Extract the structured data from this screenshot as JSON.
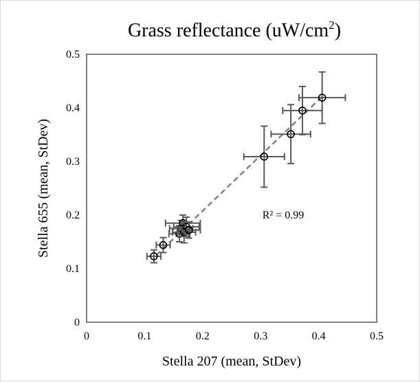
{
  "chart_data": {
    "type": "scatter",
    "title": "Grass reflectance  (uW/cm",
    "title_superscript": "2",
    "title_close": ")",
    "xlabel": "Stella 207 (mean, StDev)",
    "ylabel": "Stella 655 (mean, StDev)",
    "xlim": [
      0,
      0.5
    ],
    "ylim": [
      0,
      0.5
    ],
    "xticks": [
      "0",
      "0.1",
      "0.2",
      "0.3",
      "0.4",
      "0.5"
    ],
    "yticks": [
      "0",
      "0.1",
      "0.2",
      "0.3",
      "0.4",
      "0.5"
    ],
    "grid": false,
    "annotation": "R² = 0.99",
    "trendline": {
      "type": "linear",
      "x": [
        0.12,
        0.405
      ],
      "y": [
        0.125,
        0.42
      ],
      "color": "#808080",
      "style": "dashed"
    },
    "marker_color": "#000000",
    "errorbar_color": "#595959",
    "points": [
      {
        "x": 0.116,
        "y": 0.123,
        "xerr": 0.012,
        "yerr": 0.012
      },
      {
        "x": 0.132,
        "y": 0.144,
        "xerr": 0.012,
        "yerr": 0.014
      },
      {
        "x": 0.16,
        "y": 0.165,
        "xerr": 0.018,
        "yerr": 0.015
      },
      {
        "x": 0.163,
        "y": 0.175,
        "xerr": 0.02,
        "yerr": 0.015
      },
      {
        "x": 0.166,
        "y": 0.185,
        "xerr": 0.03,
        "yerr": 0.015
      },
      {
        "x": 0.168,
        "y": 0.168,
        "xerr": 0.02,
        "yerr": 0.02
      },
      {
        "x": 0.172,
        "y": 0.178,
        "xerr": 0.022,
        "yerr": 0.018
      },
      {
        "x": 0.176,
        "y": 0.172,
        "xerr": 0.02,
        "yerr": 0.015
      },
      {
        "x": 0.306,
        "y": 0.309,
        "xerr": 0.035,
        "yerr": 0.057
      },
      {
        "x": 0.352,
        "y": 0.351,
        "xerr": 0.034,
        "yerr": 0.055
      },
      {
        "x": 0.372,
        "y": 0.395,
        "xerr": 0.034,
        "yerr": 0.045
      },
      {
        "x": 0.406,
        "y": 0.419,
        "xerr": 0.04,
        "yerr": 0.048
      }
    ]
  }
}
